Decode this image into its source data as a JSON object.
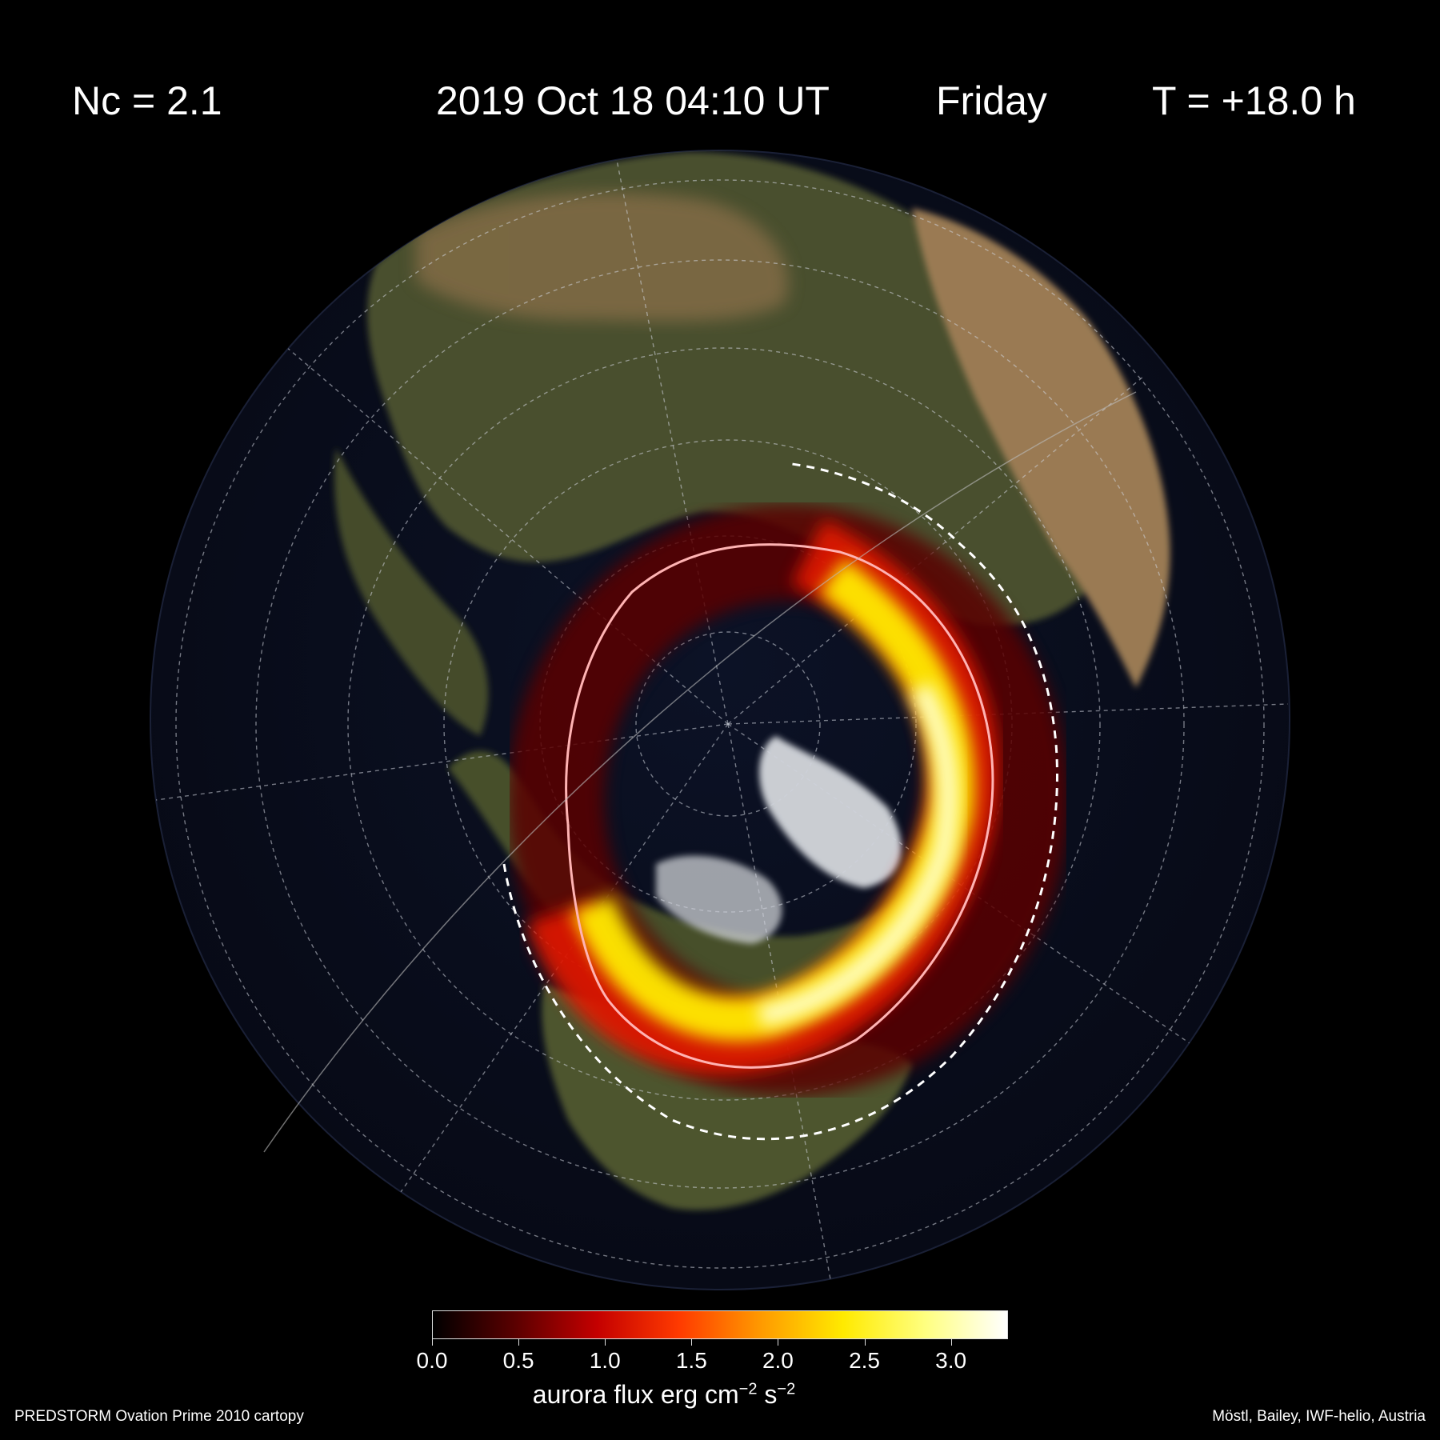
{
  "header": {
    "nc": "Nc = 2.1",
    "datetime": "2019 Oct 18  04:10 UT",
    "weekday": "Friday",
    "lead_time": "T = +18.0 h"
  },
  "colorbar": {
    "ticks": [
      "0.0",
      "0.5",
      "1.0",
      "1.5",
      "2.0",
      "2.5",
      "3.0"
    ],
    "tick_values": [
      0.0,
      0.5,
      1.0,
      1.5,
      2.0,
      2.5,
      3.0
    ],
    "range": [
      0,
      3.33
    ],
    "label_main": "aurora flux erg cm",
    "label_exp1": "−2",
    "label_mid": " s",
    "label_exp2": "−2",
    "colors": [
      "#000000",
      "#5a0000",
      "#c40000",
      "#ff3a00",
      "#ff9a00",
      "#ffea00",
      "#ffff80",
      "#ffffff"
    ]
  },
  "footer": {
    "left": "PREDSTORM  Ovation Prime 2010  cartopy",
    "right": "Möstl, Bailey, IWF-helio, Austria"
  },
  "map": {
    "projection": "orthographic, north polar view",
    "ocean_color": "#0a1022",
    "land_color": "#3f4a28",
    "ice_color": "#e6e8ea",
    "auroral_oval_colors": [
      "#5a0000",
      "#c40000",
      "#ffea00",
      "#ffffc0"
    ],
    "forecast_boundary_color": "#ffb3b3",
    "view_line_color": "#ffffff"
  }
}
